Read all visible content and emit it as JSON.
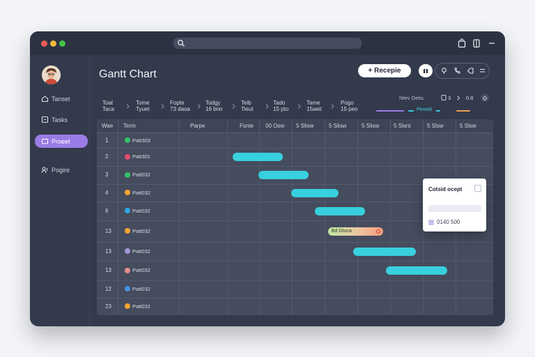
{
  "titlebar": {
    "traffic_lights": [
      "#ec5a55",
      "#f2b93b",
      "#43c346"
    ],
    "search_icon": "search-icon",
    "right_icons": [
      "bag-icon",
      "page-icon",
      "menu-icon"
    ]
  },
  "sidebar": {
    "avatar_icon": "avatar",
    "items": [
      {
        "label": "Tanset",
        "icon": "home-icon",
        "active": false
      },
      {
        "label": "Tasks",
        "icon": "task-icon",
        "active": false
      },
      {
        "label": "Proeet",
        "icon": "project-icon",
        "active": true
      },
      {
        "label": "Pogire",
        "icon": "people-icon",
        "active": false
      }
    ],
    "active_color": "#9b7be6"
  },
  "main": {
    "title": "Gantt Chart",
    "recepie_button": "+ Recepie",
    "icon_buttons": [
      "pause-icon"
    ],
    "pill_icons": [
      "pin-icon",
      "phone-icon",
      "tag-icon",
      "lines-icon"
    ]
  },
  "filters": [
    {
      "top": "Toat",
      "bottom": "Taca"
    },
    {
      "top": "Tome",
      "bottom": "Tyuet"
    },
    {
      "top": "Fopte",
      "bottom": "73 daoa"
    },
    {
      "top": "Todgy",
      "bottom": "16 bnn"
    },
    {
      "top": "Teib",
      "bottom": "Tieut"
    },
    {
      "top": "Tado",
      "bottom": "15 pto"
    },
    {
      "top": "Tame",
      "bottom": "15aeit"
    },
    {
      "top": "Pogo",
      "bottom": "15 peo"
    }
  ],
  "view_controls": {
    "label": "Ntev Oetis",
    "page": "3",
    "zoom": "0.8",
    "legend": [
      {
        "label": "",
        "color": "#9b7be6"
      },
      {
        "label": "Peneid",
        "color": "#38d0de"
      },
      {
        "label": "",
        "color": "#f0a050"
      }
    ]
  },
  "table": {
    "headers": [
      "Wae",
      "Term",
      "Parpe",
      "Fsnte",
      "00 Osw",
      "5 Slisw",
      "5 Slisw",
      "5 Slisw",
      "5 Slsnt",
      "5 Slsw",
      "5 Slsw"
    ],
    "rows": [
      {
        "num": "1",
        "task": "Patt303",
        "dot": "#2fc46a"
      },
      {
        "num": "2",
        "task": "Patt301",
        "dot": "#e54b6e"
      },
      {
        "num": "3",
        "task": "Patt032",
        "dot": "#2fc46a"
      },
      {
        "num": "4",
        "task": "Patt032",
        "dot": "#f1a531"
      },
      {
        "num": "6",
        "task": "Patt032",
        "dot": "#2fa6e5"
      },
      {
        "num": "13",
        "task": "Patt032",
        "dot": "#f1a531"
      },
      {
        "num": "13",
        "task": "Patt032",
        "dot": "#a497d4"
      },
      {
        "num": "13",
        "task": "Patt032",
        "dot": "#e58e8a"
      },
      {
        "num": "12",
        "task": "Patt032",
        "dot": "#3f93e0"
      },
      {
        "num": "23",
        "task": "Patt032",
        "dot": "#f1a531"
      }
    ],
    "bars": [
      {
        "row": 1,
        "start": 0.33,
        "end": 1.88
      },
      {
        "row": 2,
        "start": 1.13,
        "end": 2.65
      },
      {
        "row": 3,
        "start": 2.12,
        "end": 3.57
      },
      {
        "row": 4,
        "start": 2.86,
        "end": 4.38
      },
      {
        "row": 5,
        "start": 3.25,
        "end": 4.93,
        "label": "Bd Gtuca",
        "milestone": true
      },
      {
        "row": 6,
        "start": 4.03,
        "end": 5.94
      },
      {
        "row": 7,
        "start": 5.03,
        "end": 6.89
      }
    ],
    "bar_color": "#38d0de"
  },
  "popup": {
    "title": "Cotsid ocept",
    "value": "0140 500"
  }
}
